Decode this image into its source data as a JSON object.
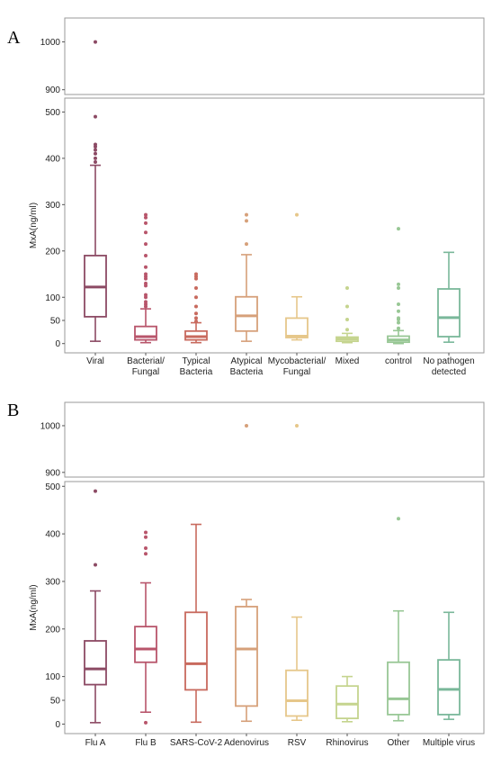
{
  "chart_data": [
    {
      "panel": "A",
      "type": "box",
      "ylabel": "MxA(ng/ml)",
      "y_ticks_lower": [
        0,
        50,
        100,
        200,
        300,
        400,
        500
      ],
      "y_ticks_upper": [
        900,
        1000
      ],
      "categories": [
        "Viral",
        "Bacterial/\nFungal",
        "Typical\nBacteria",
        "Atypical\nBacteria",
        "Mycobacterial/\nFungal",
        "Mixed",
        "control",
        "No pathogen\ndetected"
      ],
      "colors": [
        "#8c4a64",
        "#b8556b",
        "#c86a5e",
        "#d6a07a",
        "#e6c78a",
        "#c5d48e",
        "#98c795",
        "#7ab89a"
      ],
      "boxes": [
        {
          "whisker_low": 5,
          "q1": 58,
          "median": 122,
          "q3": 190,
          "whisker_high": 385,
          "outliers": [
            392,
            400,
            410,
            418,
            425,
            430,
            490,
            1000
          ]
        },
        {
          "whisker_low": 2,
          "q1": 8,
          "median": 15,
          "q3": 37,
          "whisker_high": 75,
          "outliers": [
            80,
            85,
            90,
            100,
            105,
            125,
            130,
            140,
            145,
            150,
            165,
            190,
            215,
            240,
            260,
            272,
            278
          ]
        },
        {
          "whisker_low": 2,
          "q1": 8,
          "median": 15,
          "q3": 27,
          "whisker_high": 45,
          "outliers": [
            48,
            55,
            65,
            80,
            100,
            120,
            140,
            145,
            150
          ]
        },
        {
          "whisker_low": 5,
          "q1": 27,
          "median": 60,
          "q3": 101,
          "whisker_high": 192,
          "outliers": [
            215,
            265,
            278
          ]
        },
        {
          "whisker_low": 8,
          "q1": 13,
          "median": 16,
          "q3": 55,
          "whisker_high": 101,
          "outliers": [
            278
          ]
        },
        {
          "whisker_low": 2,
          "q1": 5,
          "median": 10,
          "q3": 14,
          "whisker_high": 22,
          "outliers": [
            30,
            52,
            80,
            120
          ]
        },
        {
          "whisker_low": 0,
          "q1": 3,
          "median": 8,
          "q3": 16,
          "whisker_high": 28,
          "outliers": [
            33,
            45,
            52,
            55,
            70,
            85,
            120,
            128,
            248
          ]
        },
        {
          "whisker_low": 3,
          "q1": 15,
          "median": 56,
          "q3": 118,
          "whisker_high": 197,
          "outliers": []
        }
      ]
    },
    {
      "panel": "B",
      "type": "box",
      "ylabel": "MxA(ng/ml)",
      "y_ticks_lower": [
        0,
        50,
        100,
        200,
        300,
        400,
        500
      ],
      "y_ticks_upper": [
        900,
        1000
      ],
      "categories": [
        "Flu A",
        "Flu B",
        "SARS-CoV-2",
        "Adenovirus",
        "RSV",
        "Rhinovirus",
        "Other",
        "Multiple virus"
      ],
      "colors": [
        "#8c4a64",
        "#b8556b",
        "#c86a5e",
        "#d6a07a",
        "#e6c78a",
        "#c5d48e",
        "#98c795",
        "#7ab89a"
      ],
      "boxes": [
        {
          "whisker_low": 3,
          "q1": 83,
          "median": 116,
          "q3": 175,
          "whisker_high": 280,
          "outliers": [
            335,
            490
          ]
        },
        {
          "whisker_low": 25,
          "q1": 130,
          "median": 158,
          "q3": 205,
          "whisker_high": 297,
          "outliers": [
            3,
            358,
            370,
            393,
            403
          ]
        },
        {
          "whisker_low": 4,
          "q1": 72,
          "median": 127,
          "q3": 235,
          "whisker_high": 420,
          "outliers": []
        },
        {
          "whisker_low": 6,
          "q1": 38,
          "median": 158,
          "q3": 247,
          "whisker_high": 262,
          "outliers": [
            1000
          ]
        },
        {
          "whisker_low": 8,
          "q1": 17,
          "median": 49,
          "q3": 113,
          "whisker_high": 225,
          "outliers": [
            1000
          ]
        },
        {
          "whisker_low": 5,
          "q1": 12,
          "median": 42,
          "q3": 80,
          "whisker_high": 100,
          "outliers": []
        },
        {
          "whisker_low": 7,
          "q1": 20,
          "median": 53,
          "q3": 130,
          "whisker_high": 238,
          "outliers": [
            432
          ]
        },
        {
          "whisker_low": 10,
          "q1": 20,
          "median": 73,
          "q3": 135,
          "whisker_high": 235,
          "outliers": []
        }
      ]
    }
  ]
}
